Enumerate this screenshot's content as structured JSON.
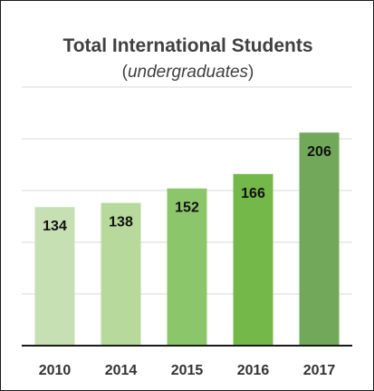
{
  "chart_data": {
    "type": "bar",
    "title": "Total International Students",
    "subtitle": {
      "open": "(",
      "text": "undergraduates",
      "close": ")"
    },
    "categories": [
      "2010",
      "2014",
      "2015",
      "2016",
      "2017"
    ],
    "values": [
      134,
      138,
      152,
      166,
      206
    ],
    "ylim": [
      0,
      250
    ],
    "grid": true,
    "legend": "none",
    "colors": [
      "#c6e0b4",
      "#b7d99b",
      "#8cc66a",
      "#74b84a",
      "#72a85a"
    ]
  }
}
